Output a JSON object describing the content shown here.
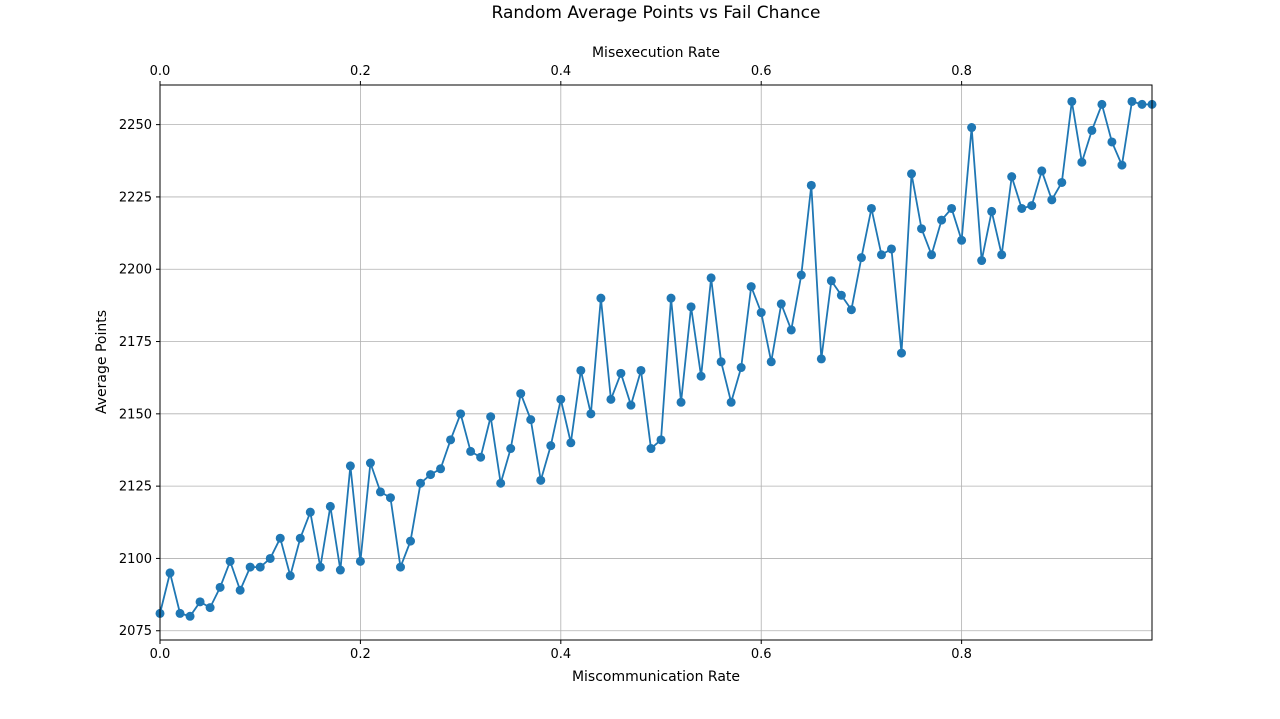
{
  "chart_data": {
    "type": "line",
    "title": "Random Average Points vs Fail Chance",
    "xlabel": "Miscommunication Rate",
    "x2label": "Misexecution Rate",
    "ylabel": "Average Points",
    "xlim": [
      0,
      0.99
    ],
    "ylim": [
      2071.8,
      2263.7
    ],
    "xticks": [
      0.0,
      0.2,
      0.4,
      0.6,
      0.8
    ],
    "xtick_labels": [
      "0.0",
      "0.2",
      "0.4",
      "0.6",
      "0.8"
    ],
    "yticks": [
      2075,
      2100,
      2125,
      2150,
      2175,
      2200,
      2225,
      2250
    ],
    "ytick_labels": [
      "2075",
      "2100",
      "2125",
      "2150",
      "2175",
      "2200",
      "2225",
      "2250"
    ],
    "grid": true,
    "legend": false,
    "marker": "circle",
    "color": "#1f77b4",
    "series": [
      {
        "x": [
          0.0,
          0.01,
          0.02,
          0.03,
          0.04,
          0.05,
          0.06,
          0.07,
          0.08,
          0.09,
          0.1,
          0.11,
          0.12,
          0.13,
          0.14,
          0.15,
          0.16,
          0.17,
          0.18,
          0.19,
          0.2,
          0.21,
          0.22,
          0.23,
          0.24,
          0.25,
          0.26,
          0.27,
          0.28,
          0.29,
          0.3,
          0.31,
          0.32,
          0.33,
          0.34,
          0.35,
          0.36,
          0.37,
          0.38,
          0.39,
          0.4,
          0.41,
          0.42,
          0.43,
          0.44,
          0.45,
          0.46,
          0.47,
          0.48,
          0.49,
          0.5,
          0.51,
          0.52,
          0.53,
          0.54,
          0.55,
          0.56,
          0.57,
          0.58,
          0.59,
          0.6,
          0.61,
          0.62,
          0.63,
          0.64,
          0.65,
          0.66,
          0.67,
          0.68,
          0.69,
          0.7,
          0.71,
          0.72,
          0.73,
          0.74,
          0.75,
          0.76,
          0.77,
          0.78,
          0.79,
          0.8,
          0.81,
          0.82,
          0.83,
          0.84,
          0.85,
          0.86,
          0.87,
          0.88,
          0.89,
          0.9,
          0.91,
          0.92,
          0.93,
          0.94,
          0.95,
          0.96,
          0.97,
          0.98,
          0.99
        ],
        "values": [
          2081,
          2095,
          2081,
          2080,
          2085,
          2083,
          2090,
          2099,
          2089,
          2097,
          2097,
          2100,
          2107,
          2094,
          2107,
          2116,
          2097,
          2118,
          2096,
          2132,
          2099,
          2133,
          2123,
          2121,
          2097,
          2106,
          2126,
          2129,
          2131,
          2141,
          2150,
          2137,
          2135,
          2149,
          2126,
          2138,
          2157,
          2148,
          2127,
          2139,
          2155,
          2140,
          2165,
          2150,
          2190,
          2155,
          2164,
          2153,
          2165,
          2138,
          2141,
          2190,
          2154,
          2187,
          2163,
          2197,
          2168,
          2154,
          2166,
          2194,
          2185,
          2168,
          2188,
          2179,
          2198,
          2229,
          2169,
          2196,
          2191,
          2186,
          2204,
          2221,
          2205,
          2207,
          2171,
          2233,
          2214,
          2205,
          2217,
          2221,
          2210,
          2249,
          2203,
          2220,
          2205,
          2232,
          2221,
          2222,
          2234,
          2224,
          2230,
          2258,
          2237,
          2248,
          2257,
          2244,
          2236,
          2258,
          2257,
          2257
        ]
      }
    ]
  }
}
